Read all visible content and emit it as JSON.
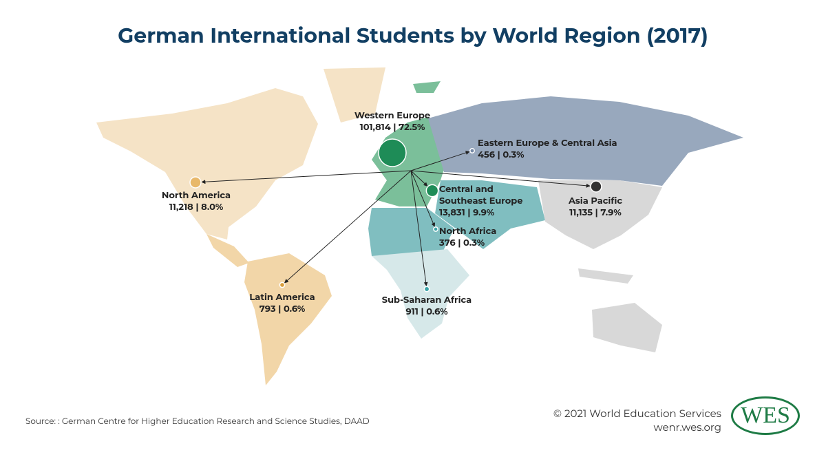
{
  "title": "German International Students by World Region (2017)",
  "regions": [
    {
      "name": "Western Europe",
      "label": "101,814 | 72.5%",
      "students": 101814,
      "color": "#1e8c57"
    },
    {
      "name": "Eastern Europe & Central Asia",
      "label": "456 | 0.3%",
      "students": 456,
      "color": "#7589a6"
    },
    {
      "name": "North America",
      "label": "11,218 | 8.0%",
      "students": 11218,
      "color": "#e8b86a"
    },
    {
      "name": "Central and Southeast Europe",
      "label": "13,831 | 9.9%",
      "students": 13831,
      "color": "#1e8c57"
    },
    {
      "name": "Asia Pacific",
      "label": "11,135 | 7.9%",
      "students": 11135,
      "color": "#333333"
    },
    {
      "name": "North Africa",
      "label": "376 | 0.3%",
      "students": 376,
      "color": "#3aa3a6"
    },
    {
      "name": "Latin America",
      "label": "793 | 0.6%",
      "students": 793,
      "color": "#d99e3c"
    },
    {
      "name": "Sub-Saharan Africa",
      "label": "911 | 0.6%",
      "students": 911,
      "color": "#3aa3a6"
    }
  ],
  "source": "Source: : German Centre for Higher Education Research and Science Studies, DAAD",
  "copyright": "© 2021 World Education Services",
  "website": "wenr.wes.org",
  "logo": "WES"
}
